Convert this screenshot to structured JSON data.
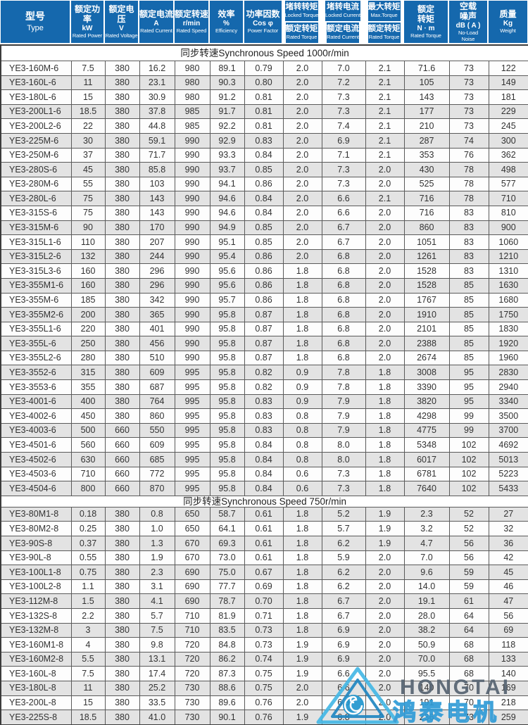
{
  "table": {
    "columns": [
      {
        "zh": "型号",
        "en": "Type"
      },
      {
        "zh": "额定功率",
        "sub": "kW",
        "en": "Rated Power"
      },
      {
        "zh": "额定电压",
        "sub": "V",
        "en": "Rated Voltage"
      },
      {
        "zh": "额定电流",
        "sub": "A",
        "en": "Rated Current"
      },
      {
        "zh": "额定转速",
        "sub": "r/min",
        "en": "Rated Speed"
      },
      {
        "zh": "效率",
        "sub": "%",
        "en": "Efficiency"
      },
      {
        "zh": "功率因数",
        "sub": "Cos φ",
        "en": "Power Factor"
      },
      {
        "split": true,
        "top": {
          "zh": "堵转转矩",
          "en": "Locked Torque"
        },
        "bottom": {
          "zh": "额定转矩",
          "en": "Rated Torque"
        }
      },
      {
        "split": true,
        "top": {
          "zh": "堵转电流",
          "en": "Locked Current"
        },
        "bottom": {
          "zh": "额定电流",
          "en": "Rated Current"
        }
      },
      {
        "split": true,
        "top": {
          "zh": "最大转矩",
          "en": "Max.Torque"
        },
        "bottom": {
          "zh": "额定转矩",
          "en": "Rated Torque"
        }
      },
      {
        "zh": "额定\n转矩",
        "sub": "N · m",
        "en": "Rated Torque"
      },
      {
        "zh": "空载\n噪声",
        "sub": "dB ( A )",
        "en": "No-Load\nNoise"
      },
      {
        "zh": "质量",
        "sub": "Kg",
        "en": "Weight"
      }
    ],
    "sections": [
      {
        "title": "同步转速Synchronous Speed  1000r/min",
        "rows": [
          [
            "YE3-160M-6",
            "7.5",
            "380",
            "16.2",
            "980",
            "89.1",
            "0.79",
            "2.0",
            "7.0",
            "2.1",
            "71.6",
            "73",
            "122"
          ],
          [
            "YE3-160L-6",
            "11",
            "380",
            "23.1",
            "980",
            "90.3",
            "0.80",
            "2.0",
            "7.2",
            "2.1",
            "105",
            "73",
            "149"
          ],
          [
            "YE3-180L-6",
            "15",
            "380",
            "30.9",
            "980",
            "91.2",
            "0.81",
            "2.0",
            "7.3",
            "2.1",
            "143",
            "73",
            "181"
          ],
          [
            "YE3-200L1-6",
            "18.5",
            "380",
            "37.8",
            "985",
            "91.7",
            "0.81",
            "2.0",
            "7.3",
            "2.1",
            "177",
            "73",
            "229"
          ],
          [
            "YE3-200L2-6",
            "22",
            "380",
            "44.8",
            "985",
            "92.2",
            "0.81",
            "2.0",
            "7.4",
            "2.1",
            "210",
            "73",
            "245"
          ],
          [
            "YE3-225M-6",
            "30",
            "380",
            "59.1",
            "990",
            "92.9",
            "0.83",
            "2.0",
            "6.9",
            "2.1",
            "287",
            "74",
            "300"
          ],
          [
            "YE3-250M-6",
            "37",
            "380",
            "71.7",
            "990",
            "93.3",
            "0.84",
            "2.0",
            "7.1",
            "2.1",
            "353",
            "76",
            "362"
          ],
          [
            "YE3-280S-6",
            "45",
            "380",
            "85.8",
            "990",
            "93.7",
            "0.85",
            "2.0",
            "7.3",
            "2.0",
            "430",
            "78",
            "498"
          ],
          [
            "YE3-280M-6",
            "55",
            "380",
            "103",
            "990",
            "94.1",
            "0.86",
            "2.0",
            "7.3",
            "2.0",
            "525",
            "78",
            "577"
          ],
          [
            "YE3-280L-6",
            "75",
            "380",
            "143",
            "990",
            "94.6",
            "0.84",
            "2.0",
            "6.6",
            "2.1",
            "716",
            "78",
            "710"
          ],
          [
            "YE3-315S-6",
            "75",
            "380",
            "143",
            "990",
            "94.6",
            "0.84",
            "2.0",
            "6.6",
            "2.0",
            "716",
            "83",
            "810"
          ],
          [
            "YE3-315M-6",
            "90",
            "380",
            "170",
            "990",
            "94.9",
            "0.85",
            "2.0",
            "6.7",
            "2.0",
            "860",
            "83",
            "900"
          ],
          [
            "YE3-315L1-6",
            "110",
            "380",
            "207",
            "990",
            "95.1",
            "0.85",
            "2.0",
            "6.7",
            "2.0",
            "1051",
            "83",
            "1060"
          ],
          [
            "YE3-315L2-6",
            "132",
            "380",
            "244",
            "990",
            "95.4",
            "0.86",
            "2.0",
            "6.8",
            "2.0",
            "1261",
            "83",
            "1210"
          ],
          [
            "YE3-315L3-6",
            "160",
            "380",
            "296",
            "990",
            "95.6",
            "0.86",
            "1.8",
            "6.8",
            "2.0",
            "1528",
            "83",
            "1310"
          ],
          [
            "YE3-355M1-6",
            "160",
            "380",
            "296",
            "990",
            "95.6",
            "0.86",
            "1.8",
            "6.8",
            "2.0",
            "1528",
            "85",
            "1630"
          ],
          [
            "YE3-355M-6",
            "185",
            "380",
            "342",
            "990",
            "95.7",
            "0.86",
            "1.8",
            "6.8",
            "2.0",
            "1767",
            "85",
            "1680"
          ],
          [
            "YE3-355M2-6",
            "200",
            "380",
            "365",
            "990",
            "95.8",
            "0.87",
            "1.8",
            "6.8",
            "2.0",
            "1910",
            "85",
            "1750"
          ],
          [
            "YE3-355L1-6",
            "220",
            "380",
            "401",
            "990",
            "95.8",
            "0.87",
            "1.8",
            "6.8",
            "2.0",
            "2101",
            "85",
            "1830"
          ],
          [
            "YE3-355L-6",
            "250",
            "380",
            "456",
            "990",
            "95.8",
            "0.87",
            "1.8",
            "6.8",
            "2.0",
            "2388",
            "85",
            "1920"
          ],
          [
            "YE3-355L2-6",
            "280",
            "380",
            "510",
            "990",
            "95.8",
            "0.87",
            "1.8",
            "6.8",
            "2.0",
            "2674",
            "85",
            "1960"
          ],
          [
            "YE3-3552-6",
            "315",
            "380",
            "609",
            "995",
            "95.8",
            "0.82",
            "0.9",
            "7.8",
            "1.8",
            "3008",
            "95",
            "2830"
          ],
          [
            "YE3-3553-6",
            "355",
            "380",
            "687",
            "995",
            "95.8",
            "0.82",
            "0.9",
            "7.8",
            "1.8",
            "3390",
            "95",
            "2940"
          ],
          [
            "YE3-4001-6",
            "400",
            "380",
            "764",
            "995",
            "95.8",
            "0.83",
            "0.9",
            "7.9",
            "1.8",
            "3820",
            "95",
            "3340"
          ],
          [
            "YE3-4002-6",
            "450",
            "380",
            "860",
            "995",
            "95.8",
            "0.83",
            "0.8",
            "7.9",
            "1.8",
            "4298",
            "99",
            "3500"
          ],
          [
            "YE3-4003-6",
            "500",
            "660",
            "550",
            "995",
            "95.8",
            "0.83",
            "0.8",
            "7.9",
            "1.8",
            "4775",
            "99",
            "3700"
          ],
          [
            "YE3-4501-6",
            "560",
            "660",
            "609",
            "995",
            "95.8",
            "0.84",
            "0.8",
            "8.0",
            "1.8",
            "5348",
            "102",
            "4692"
          ],
          [
            "YE3-4502-6",
            "630",
            "660",
            "685",
            "995",
            "95.8",
            "0.84",
            "0.8",
            "8.0",
            "1.8",
            "6017",
            "102",
            "5013"
          ],
          [
            "YE3-4503-6",
            "710",
            "660",
            "772",
            "995",
            "95.8",
            "0.84",
            "0.6",
            "7.3",
            "1.8",
            "6781",
            "102",
            "5223"
          ],
          [
            "YE3-4504-6",
            "800",
            "660",
            "870",
            "995",
            "95.8",
            "0.84",
            "0.6",
            "7.3",
            "1.8",
            "7640",
            "102",
            "5433"
          ]
        ]
      },
      {
        "title": "同步转速Synchronous Speed  750r/min",
        "rows": [
          [
            "YE3-80M1-8",
            "0.18",
            "380",
            "0.8",
            "650",
            "58.7",
            "0.61",
            "1.8",
            "5.2",
            "1.9",
            "2.3",
            "52",
            "27"
          ],
          [
            "YE3-80M2-8",
            "0.25",
            "380",
            "1.0",
            "650",
            "64.1",
            "0.61",
            "1.8",
            "5.7",
            "1.9",
            "3.2",
            "52",
            "32"
          ],
          [
            "YE3-90S-8",
            "0.37",
            "380",
            "1.3",
            "670",
            "69.3",
            "0.61",
            "1.8",
            "6.2",
            "1.9",
            "4.7",
            "56",
            "36"
          ],
          [
            "YE3-90L-8",
            "0.55",
            "380",
            "1.9",
            "670",
            "73.0",
            "0.61",
            "1.8",
            "5.9",
            "2.0",
            "7.0",
            "56",
            "42"
          ],
          [
            "YE3-100L1-8",
            "0.75",
            "380",
            "2.3",
            "690",
            "75.0",
            "0.67",
            "1.8",
            "6.2",
            "2.0",
            "9.6",
            "59",
            "45"
          ],
          [
            "YE3-100L2-8",
            "1.1",
            "380",
            "3.1",
            "690",
            "77.7",
            "0.69",
            "1.8",
            "6.2",
            "2.0",
            "14.0",
            "59",
            "46"
          ],
          [
            "YE3-112M-8",
            "1.5",
            "380",
            "4.1",
            "690",
            "78.7",
            "0.70",
            "1.8",
            "6.7",
            "2.0",
            "19.1",
            "61",
            "47"
          ],
          [
            "YE3-132S-8",
            "2.2",
            "380",
            "5.7",
            "710",
            "81.9",
            "0.71",
            "1.8",
            "6.7",
            "2.0",
            "28.0",
            "64",
            "56"
          ],
          [
            "YE3-132M-8",
            "3",
            "380",
            "7.5",
            "710",
            "83.5",
            "0.73",
            "1.8",
            "6.9",
            "2.0",
            "38.2",
            "64",
            "69"
          ],
          [
            "YE3-160M1-8",
            "4",
            "380",
            "9.8",
            "720",
            "84.8",
            "0.73",
            "1.9",
            "6.9",
            "2.0",
            "50.9",
            "68",
            "118"
          ],
          [
            "YE3-160M2-8",
            "5.5",
            "380",
            "13.1",
            "720",
            "86.2",
            "0.74",
            "1.9",
            "6.9",
            "2.0",
            "70.0",
            "68",
            "133"
          ],
          [
            "YE3-160L-8",
            "7.5",
            "380",
            "17.4",
            "720",
            "87.3",
            "0.75",
            "1.9",
            "6.6",
            "2.0",
            "95.5",
            "68",
            "140"
          ],
          [
            "YE3-180L-8",
            "11",
            "380",
            "25.2",
            "730",
            "88.6",
            "0.75",
            "2.0",
            "6.6",
            "2.0",
            "140",
            "70",
            "169"
          ],
          [
            "YE3-200L-8",
            "15",
            "380",
            "33.5",
            "730",
            "89.6",
            "0.76",
            "2.0",
            "6.8",
            "2.0",
            "191",
            "70",
            "218"
          ],
          [
            "YE3-225S-8",
            "18.5",
            "380",
            "41.0",
            "730",
            "90.1",
            "0.76",
            "1.9",
            "6.8",
            "2.0",
            "236",
            "73",
            "259"
          ]
        ]
      }
    ]
  },
  "watermark": {
    "brand": "HONGTAI",
    "brand_zh": "鸿泰电机"
  },
  "colors": {
    "header_blue": "#1568ad",
    "row_stripe": "#e3e3e3",
    "logo_cyan": "#45b8e6",
    "logo_text_gray": "#566472"
  }
}
